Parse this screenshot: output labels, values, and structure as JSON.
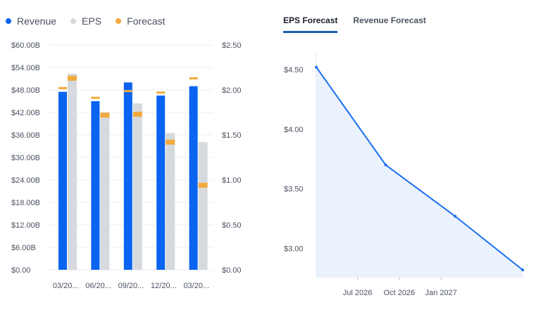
{
  "legend": [
    {
      "label": "Revenue",
      "color": "#0a64f0"
    },
    {
      "label": "EPS",
      "color": "#d6d9dd"
    },
    {
      "label": "Forecast",
      "color": "#f2a93b"
    }
  ],
  "tabs": [
    {
      "label": "EPS Forecast",
      "active": true
    },
    {
      "label": "Revenue Forecast",
      "active": false
    }
  ],
  "chart_data": [
    {
      "type": "bar",
      "categories": [
        "03/20...",
        "06/20...",
        "09/20...",
        "12/20...",
        "03/20..."
      ],
      "left_axis": {
        "ticks": [
          "$0.00",
          "$6.00B",
          "$12.00B",
          "$18.00B",
          "$24.00B",
          "$30.00B",
          "$36.00B",
          "$42.00B",
          "$48.00B",
          "$54.00B",
          "$60.00B"
        ],
        "ylim": [
          0,
          60
        ]
      },
      "right_axis": {
        "ticks": [
          "$0.00",
          "$0.50",
          "$1.00",
          "$1.50",
          "$2.00",
          "$2.50"
        ],
        "ylim": [
          0,
          2.5
        ]
      },
      "grid": true,
      "series": [
        {
          "name": "Revenue",
          "axis": "left",
          "values": [
            47.5,
            45.0,
            50.0,
            46.5,
            49.0
          ]
        },
        {
          "name": "EPS",
          "axis": "right",
          "values": [
            2.18,
            1.75,
            1.85,
            1.52,
            1.42
          ]
        },
        {
          "name": "Forecast",
          "revenue": [
            48.4,
            45.8,
            47.6,
            47.2,
            51.0
          ],
          "eps": [
            2.13,
            1.72,
            1.73,
            1.42,
            0.94
          ]
        }
      ]
    },
    {
      "type": "area",
      "x": [
        "2026-04-01",
        "2026-09-01",
        "2027-02-01",
        "2027-06-30"
      ],
      "values": [
        4.52,
        3.7,
        3.27,
        2.82
      ],
      "x_ticks": [
        "Jul 2026",
        "Oct 2026",
        "Jan 2027"
      ],
      "y_ticks": [
        "$3.00",
        "$3.50",
        "$4.00",
        "$4.50"
      ],
      "ylim": [
        2.75,
        4.6
      ],
      "line_color": "#1a6ff0",
      "fill_color": "#eaf2fd"
    }
  ]
}
